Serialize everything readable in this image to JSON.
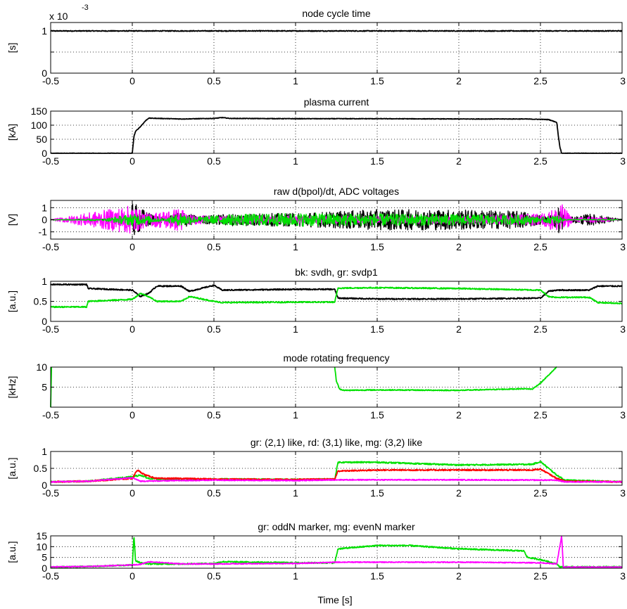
{
  "figure": {
    "xlabel": "Time [s]",
    "xticks": [
      "-0.5",
      "0",
      "0.5",
      "1",
      "1.5",
      "2",
      "2.5",
      "3"
    ]
  },
  "chart_data": [
    {
      "type": "line",
      "title": "node cycle time",
      "ylabel": "[s]",
      "exponent_label": "x 10",
      "exponent_power": "-3",
      "xlim": [
        -0.5,
        3
      ],
      "ylim": [
        0,
        1.2
      ],
      "yticks": [
        0,
        0.5,
        1
      ],
      "ytick_labels": [
        "0",
        "",
        "1"
      ],
      "series": [
        {
          "color": "#000000",
          "x": [
            -0.5,
            3
          ],
          "y": [
            1.0,
            1.0
          ],
          "noise": 0.01
        }
      ]
    },
    {
      "type": "line",
      "title": "plasma current",
      "ylabel": "[kA]",
      "xlim": [
        -0.5,
        3
      ],
      "ylim": [
        0,
        150
      ],
      "yticks": [
        0,
        50,
        100,
        150
      ],
      "ytick_labels": [
        "0",
        "50",
        "100",
        "150"
      ],
      "series": [
        {
          "color": "#000000",
          "x": [
            -0.5,
            0.0,
            0.01,
            0.02,
            0.05,
            0.08,
            0.1,
            0.3,
            0.5,
            0.55,
            0.6,
            1.0,
            1.5,
            2.0,
            2.4,
            2.55,
            2.6,
            2.61,
            2.62,
            2.63,
            3.0
          ],
          "y": [
            0,
            0,
            60,
            78,
            95,
            115,
            125,
            122,
            124,
            127,
            124,
            123,
            123,
            122,
            122,
            120,
            110,
            60,
            20,
            0,
            0
          ],
          "noise": 1
        }
      ]
    },
    {
      "type": "line",
      "title": "raw d(bpol)/dt, ADC voltages",
      "ylabel": "[V]",
      "xlim": [
        -0.5,
        3
      ],
      "ylim": [
        -1.6,
        1.6
      ],
      "yticks": [
        -1,
        0,
        1
      ],
      "ytick_labels": [
        "-1",
        "0",
        "1"
      ],
      "series": [
        {
          "color": "#000000",
          "x": [
            -0.5,
            -0.01,
            0.0,
            0.05,
            0.1,
            0.2,
            0.3,
            0.4,
            0.6,
            1.0,
            1.5,
            2.0,
            2.4,
            2.55,
            2.6,
            2.62,
            2.65,
            2.8,
            3.0
          ],
          "y": [
            0.02,
            0.02,
            0.0,
            0.0,
            0.0,
            0.0,
            0.0,
            0.0,
            0.0,
            0.0,
            0.0,
            0.0,
            0.0,
            0.0,
            0.0,
            0.0,
            0.0,
            0.0,
            0.0
          ],
          "amp": [
            0.03,
            0.03,
            1.5,
            1.0,
            0.6,
            0.15,
            0.7,
            0.3,
            0.5,
            0.55,
            0.85,
            0.85,
            0.7,
            0.25,
            0.8,
            1.5,
            0.1,
            0.5,
            0.05
          ]
        },
        {
          "color": "#ff00ff",
          "x": [
            -0.5,
            0.0,
            0.05,
            0.1,
            0.3,
            0.35,
            0.5,
            1.0,
            2.0,
            2.5,
            2.6,
            2.62,
            2.7,
            2.8,
            3.0
          ],
          "y": [
            0,
            0,
            0,
            0,
            0,
            0,
            0,
            0,
            0,
            0,
            0,
            0,
            0,
            0,
            0
          ],
          "amp": [
            0.03,
            1.2,
            0.8,
            0.5,
            1.0,
            0.4,
            0.3,
            0.3,
            0.3,
            0.5,
            1.0,
            1.5,
            0.1,
            0.3,
            0.03
          ]
        },
        {
          "color": "#00e000",
          "x": [
            -0.5,
            -0.3,
            -0.25,
            -0.2,
            0.0,
            0.05,
            0.1,
            0.2,
            0.3,
            0.4,
            0.5,
            0.6,
            0.8,
            1.0,
            1.5,
            2.0,
            2.4,
            2.5,
            2.6,
            2.65,
            3.0
          ],
          "y": [
            0,
            0,
            0,
            0,
            0,
            0,
            0,
            0,
            0,
            0,
            0,
            0,
            0,
            0,
            0,
            0,
            0,
            0,
            0,
            0,
            0
          ],
          "amp": [
            0.03,
            0.03,
            0.12,
            0.03,
            0.5,
            0.4,
            0.3,
            0.1,
            0.6,
            0.25,
            0.35,
            0.45,
            0.5,
            0.55,
            0.5,
            0.45,
            0.4,
            0.2,
            0.4,
            0.05,
            0.03
          ]
        }
      ]
    },
    {
      "type": "line",
      "title": "bk: svdh, gr: svdp1",
      "ylabel": "[a.u.]",
      "xlim": [
        -0.5,
        3
      ],
      "ylim": [
        0,
        1
      ],
      "yticks": [
        0,
        0.5,
        1
      ],
      "ytick_labels": [
        "0",
        "0.5",
        "1"
      ],
      "series": [
        {
          "color": "#000000",
          "x": [
            -0.5,
            -0.28,
            -0.27,
            0.0,
            0.05,
            0.1,
            0.15,
            0.3,
            0.35,
            0.5,
            0.55,
            1.0,
            1.24,
            1.26,
            1.5,
            2.0,
            2.5,
            2.55,
            2.6,
            2.8,
            2.85,
            3.0
          ],
          "y": [
            0.92,
            0.92,
            0.82,
            0.78,
            0.62,
            0.7,
            0.88,
            0.88,
            0.75,
            0.9,
            0.78,
            0.8,
            0.8,
            0.58,
            0.56,
            0.56,
            0.58,
            0.75,
            0.78,
            0.78,
            0.88,
            0.88
          ],
          "noise": 0.015
        },
        {
          "color": "#00e000",
          "x": [
            -0.5,
            -0.28,
            -0.27,
            0.0,
            0.05,
            0.1,
            0.15,
            0.3,
            0.35,
            0.5,
            0.55,
            1.0,
            1.24,
            1.26,
            1.5,
            2.0,
            2.5,
            2.55,
            2.6,
            2.8,
            2.85,
            3.0
          ],
          "y": [
            0.36,
            0.36,
            0.5,
            0.55,
            0.7,
            0.62,
            0.5,
            0.5,
            0.62,
            0.5,
            0.47,
            0.48,
            0.48,
            0.83,
            0.84,
            0.82,
            0.78,
            0.62,
            0.6,
            0.6,
            0.47,
            0.45
          ],
          "noise": 0.015
        }
      ]
    },
    {
      "type": "line",
      "title": "mode rotating frequency",
      "ylabel": "[kHz]",
      "xlim": [
        -0.5,
        3
      ],
      "ylim": [
        0,
        10
      ],
      "yticks": [
        5,
        10
      ],
      "ytick_labels": [
        "5",
        "10"
      ],
      "series": [
        {
          "color": "#00e000",
          "x": [
            1.24,
            1.25,
            1.27,
            1.3,
            1.5,
            2.0,
            2.4,
            2.45,
            2.5,
            2.55,
            2.6
          ],
          "y": [
            10,
            6.5,
            4.5,
            4.2,
            4.3,
            4.2,
            4.6,
            4.5,
            6.0,
            8.0,
            10
          ],
          "noise": 0.12
        },
        {
          "color": "#00e000",
          "x": [
            -0.5,
            -0.495
          ],
          "y": [
            0,
            10
          ],
          "noise": 0
        }
      ]
    },
    {
      "type": "line",
      "title": "gr: (2,1) like, rd: (3,1) like, mg: (3,2) like",
      "ylabel": "[a.u.]",
      "xlim": [
        -0.5,
        3
      ],
      "ylim": [
        0,
        1
      ],
      "yticks": [
        0,
        0.5,
        1
      ],
      "ytick_labels": [
        "0",
        "0.5",
        "1"
      ],
      "series": [
        {
          "color": "#00e000",
          "x": [
            -0.5,
            -0.27,
            0.0,
            0.05,
            0.1,
            0.3,
            0.5,
            1.0,
            1.24,
            1.26,
            1.5,
            2.0,
            2.45,
            2.5,
            2.6,
            2.65,
            3.0
          ],
          "y": [
            0.1,
            0.12,
            0.25,
            0.3,
            0.2,
            0.15,
            0.18,
            0.17,
            0.18,
            0.68,
            0.68,
            0.6,
            0.62,
            0.7,
            0.3,
            0.15,
            0.1
          ],
          "noise": 0.02
        },
        {
          "color": "#ff0000",
          "x": [
            -0.5,
            -0.27,
            0.0,
            0.03,
            0.08,
            0.15,
            0.3,
            0.5,
            1.0,
            1.24,
            1.26,
            1.5,
            2.0,
            2.45,
            2.5,
            2.6,
            2.65,
            3.0
          ],
          "y": [
            0.1,
            0.12,
            0.2,
            0.45,
            0.3,
            0.2,
            0.2,
            0.18,
            0.17,
            0.18,
            0.42,
            0.45,
            0.45,
            0.45,
            0.48,
            0.2,
            0.12,
            0.1
          ],
          "noise": 0.02
        },
        {
          "color": "#ff00ff",
          "x": [
            -0.5,
            -0.27,
            0.0,
            0.05,
            0.3,
            0.5,
            1.0,
            1.26,
            2.0,
            2.6,
            2.65,
            3.0
          ],
          "y": [
            0.1,
            0.12,
            0.22,
            0.12,
            0.14,
            0.15,
            0.14,
            0.16,
            0.16,
            0.15,
            0.1,
            0.1
          ],
          "noise": 0.015
        }
      ]
    },
    {
      "type": "line",
      "title": "gr: oddN marker, mg: evenN marker",
      "ylabel": "[a.u.]",
      "xlim": [
        -0.5,
        3
      ],
      "ylim": [
        0,
        15
      ],
      "yticks": [
        0,
        5,
        10,
        15
      ],
      "ytick_labels": [
        "0",
        "5",
        "10",
        "15"
      ],
      "series": [
        {
          "color": "#00e000",
          "x": [
            -0.5,
            -0.27,
            0.0,
            0.01,
            0.02,
            0.05,
            0.1,
            0.3,
            0.5,
            0.55,
            1.0,
            1.24,
            1.26,
            1.5,
            1.7,
            2.0,
            2.4,
            2.42,
            2.5,
            2.6,
            2.62,
            2.65,
            3.0
          ],
          "y": [
            0.5,
            0.8,
            1.5,
            15,
            3.5,
            2.5,
            2.0,
            2.0,
            2.2,
            3.0,
            2.5,
            2.5,
            9.0,
            10.5,
            10.5,
            9.0,
            8.0,
            5.0,
            4.0,
            2.0,
            0.6,
            0.6,
            0.6
          ],
          "noise": 0.3
        },
        {
          "color": "#ff00ff",
          "x": [
            -0.5,
            -0.27,
            0.0,
            0.05,
            0.1,
            0.3,
            0.5,
            1.0,
            1.26,
            2.0,
            2.5,
            2.6,
            2.63,
            2.64,
            2.66,
            3.0
          ],
          "y": [
            0.6,
            0.8,
            1.5,
            1.8,
            3.0,
            2.0,
            2.0,
            2.2,
            2.8,
            2.8,
            2.5,
            2.0,
            15,
            0.5,
            0.5,
            0.5
          ],
          "noise": 0.2
        }
      ]
    }
  ]
}
